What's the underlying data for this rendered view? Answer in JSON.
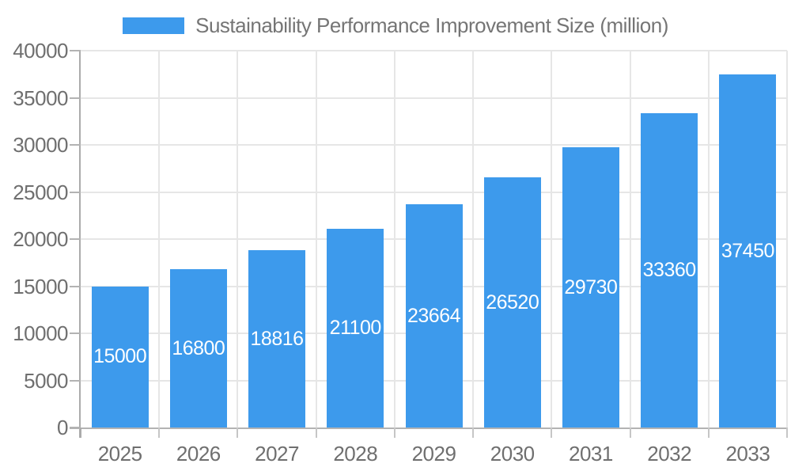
{
  "chart_data": {
    "type": "bar",
    "title": "Sustainability Performance Improvement Size (million)",
    "legend": {
      "position": "top",
      "label": "Sustainability Performance Improvement Size (million)"
    },
    "categories": [
      "2025",
      "2026",
      "2027",
      "2028",
      "2029",
      "2030",
      "2031",
      "2032",
      "2033"
    ],
    "series": [
      {
        "name": "Sustainability Performance Improvement Size (million)",
        "values": [
          15000,
          16800,
          18816,
          21100,
          23664,
          26520,
          29730,
          33360,
          37450
        ],
        "bar_labels": [
          "15000",
          "16800",
          "18816",
          "21100",
          "23664",
          "26520",
          "29730",
          "33360",
          "37450"
        ]
      }
    ],
    "xlabel": "",
    "ylabel": "",
    "ylim": [
      0,
      40000
    ],
    "y_ticks": [
      0,
      5000,
      10000,
      15000,
      20000,
      25000,
      30000,
      35000,
      40000
    ],
    "y_tick_labels": [
      "0",
      "5000",
      "10000",
      "15000",
      "20000",
      "25000",
      "30000",
      "35000",
      "40000"
    ],
    "grid": true,
    "colors": {
      "bar": "#3D9AEC",
      "bar_label_text": "#FFFFFF",
      "legend_text": "#757575",
      "axis_text": "#6F6F6F",
      "gridline": "#E6E6E6",
      "axis_line": "#ABABAB",
      "baseline": "#B3B3B3",
      "tick": "#C6C6C6",
      "background": "#FFFFFF"
    }
  }
}
